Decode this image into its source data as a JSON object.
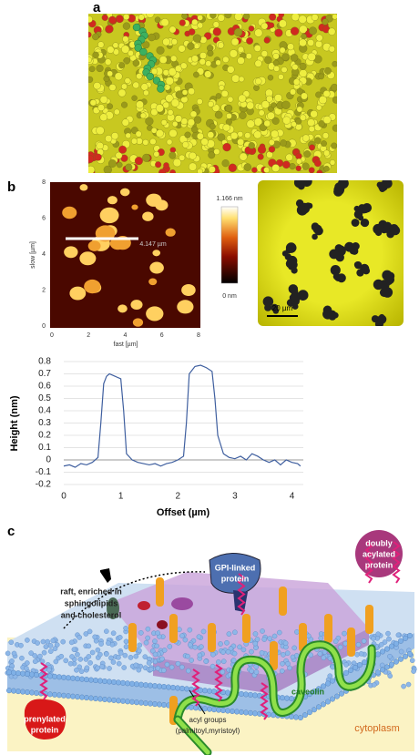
{
  "panel_labels": [
    "a",
    "b",
    "c"
  ],
  "afm": {
    "y_label": "slow [µm]",
    "x_label": "fast [µm]",
    "ticks": [
      0,
      2,
      4,
      6,
      8
    ],
    "tick_range": [
      0,
      8
    ],
    "line_label": "4.147 µm",
    "colorbar_max": "1.166 nm",
    "colorbar_min": "0 nm",
    "scale_bar": "20 µm"
  },
  "chart_data": {
    "type": "line",
    "x_label": "Offset (µm)",
    "y_label": "Height (nm)",
    "x": [
      0,
      0.1,
      0.2,
      0.3,
      0.4,
      0.5,
      0.6,
      0.65,
      0.7,
      0.75,
      0.8,
      0.9,
      1.0,
      1.05,
      1.1,
      1.2,
      1.3,
      1.4,
      1.5,
      1.6,
      1.7,
      1.8,
      1.9,
      2.0,
      2.1,
      2.15,
      2.2,
      2.3,
      2.4,
      2.5,
      2.6,
      2.65,
      2.7,
      2.8,
      2.9,
      3.0,
      3.1,
      3.2,
      3.3,
      3.4,
      3.5,
      3.6,
      3.7,
      3.8,
      3.9,
      4.0,
      4.1,
      4.15
    ],
    "series": [
      {
        "name": "Height",
        "color": "#3f5f9f",
        "values": [
          -0.05,
          -0.04,
          -0.06,
          -0.03,
          -0.04,
          -0.02,
          0.02,
          0.3,
          0.62,
          0.68,
          0.7,
          0.68,
          0.66,
          0.4,
          0.05,
          0.0,
          -0.02,
          -0.03,
          -0.04,
          -0.03,
          -0.05,
          -0.03,
          -0.02,
          0.0,
          0.03,
          0.3,
          0.7,
          0.76,
          0.77,
          0.75,
          0.72,
          0.5,
          0.2,
          0.05,
          0.02,
          0.01,
          0.03,
          0.0,
          0.05,
          0.03,
          0.0,
          -0.02,
          0.0,
          -0.04,
          0.0,
          -0.02,
          -0.03,
          -0.05
        ]
      }
    ],
    "xlim": [
      0,
      4.2
    ],
    "ylim": [
      -0.2,
      0.8
    ],
    "xticks": [
      0,
      1,
      2,
      3,
      4
    ],
    "yticks": [
      -0.2,
      -0.1,
      0,
      0.1,
      0.2,
      0.3,
      0.4,
      0.5,
      0.6,
      0.7,
      0.8
    ],
    "grid": true
  },
  "diagram": {
    "raft_label": [
      "raft, enriched in",
      "sphingolipids",
      "and cholesterol"
    ],
    "gpi_label": [
      "GPI-linked",
      "protein"
    ],
    "doubly_label": [
      "doubly",
      "acylated",
      "protein"
    ],
    "prenylated_label": [
      "prenylated",
      "protein"
    ],
    "caveolin_label": "caveolin",
    "acyl_label": [
      "acyl groups",
      "(palmitoyl,myristoyl)"
    ],
    "cytoplasm_label": "cytoplasm"
  }
}
